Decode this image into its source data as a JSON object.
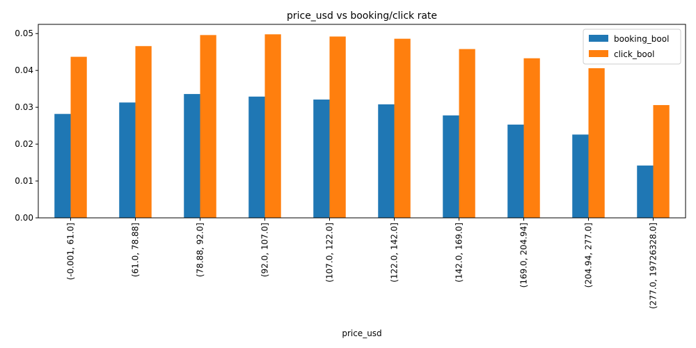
{
  "chart_data": {
    "type": "bar",
    "title": "price_usd vs booking/click rate",
    "xlabel": "price_usd",
    "ylabel": "",
    "ylim": [
      0,
      0.0525
    ],
    "yticks": [
      "0.00",
      "0.01",
      "0.02",
      "0.03",
      "0.04",
      "0.05"
    ],
    "ytick_values": [
      0,
      0.01,
      0.02,
      0.03,
      0.04,
      0.05
    ],
    "categories": [
      "(-0.001, 61.0]",
      "(61.0, 78.88]",
      "(78.88, 92.0]",
      "(92.0, 107.0]",
      "(107.0, 122.0]",
      "(122.0, 142.0]",
      "(142.0, 169.0]",
      "(169.0, 204.94]",
      "(204.94, 277.0]",
      "(277.0, 19726328.0]"
    ],
    "series": [
      {
        "name": "booking_bool",
        "color": "#1f77b4",
        "values": [
          0.0282,
          0.0313,
          0.0336,
          0.0329,
          0.0321,
          0.0308,
          0.0278,
          0.0253,
          0.0226,
          0.0142
        ]
      },
      {
        "name": "click_bool",
        "color": "#ff7f0e",
        "values": [
          0.0437,
          0.0466,
          0.0496,
          0.0498,
          0.0492,
          0.0486,
          0.0458,
          0.0433,
          0.0406,
          0.0306
        ]
      }
    ],
    "legend_position": "top-right",
    "grid": false
  }
}
